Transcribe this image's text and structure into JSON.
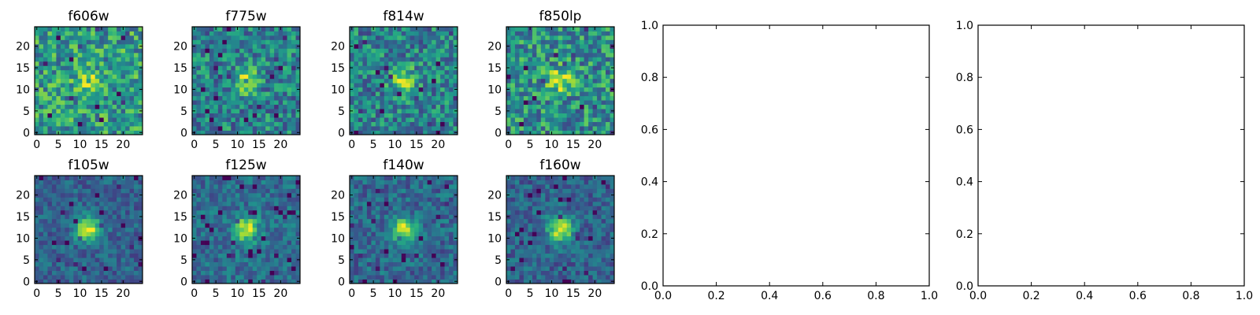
{
  "chart_data": [
    {
      "type": "heatmap",
      "title": "f606w",
      "size": 25,
      "seed": 11,
      "peak": 0.25,
      "noise": 0.55,
      "base": 0.55,
      "xticks": [
        "0",
        "5",
        "10",
        "15",
        "20"
      ],
      "yticks": [
        "0",
        "5",
        "10",
        "15",
        "20"
      ],
      "xlim": [
        0,
        24
      ],
      "ylim": [
        0,
        24
      ],
      "colormap": "viridis",
      "grid": false
    },
    {
      "type": "heatmap",
      "title": "f775w",
      "size": 25,
      "seed": 23,
      "peak": 0.4,
      "noise": 0.5,
      "base": 0.45,
      "xticks": [
        "0",
        "5",
        "10",
        "15",
        "20"
      ],
      "yticks": [
        "0",
        "5",
        "10",
        "15",
        "20"
      ],
      "xlim": [
        0,
        24
      ],
      "ylim": [
        0,
        24
      ],
      "colormap": "viridis",
      "grid": false
    },
    {
      "type": "heatmap",
      "title": "f814w",
      "size": 25,
      "seed": 37,
      "peak": 0.45,
      "noise": 0.5,
      "base": 0.45,
      "xticks": [
        "0",
        "5",
        "10",
        "15",
        "20"
      ],
      "yticks": [
        "0",
        "5",
        "10",
        "15",
        "20"
      ],
      "xlim": [
        0,
        24
      ],
      "ylim": [
        0,
        24
      ],
      "colormap": "viridis",
      "grid": false
    },
    {
      "type": "heatmap",
      "title": "f850lp",
      "size": 25,
      "seed": 41,
      "peak": 0.4,
      "noise": 0.55,
      "base": 0.5,
      "xticks": [
        "0",
        "5",
        "10",
        "15",
        "20"
      ],
      "yticks": [
        "0",
        "5",
        "10",
        "15",
        "20"
      ],
      "xlim": [
        0,
        24
      ],
      "ylim": [
        0,
        24
      ],
      "colormap": "viridis",
      "grid": false
    },
    {
      "type": "heatmap",
      "title": "f105w",
      "size": 25,
      "seed": 53,
      "peak": 0.65,
      "noise": 0.28,
      "base": 0.32,
      "xticks": [
        "0",
        "5",
        "10",
        "15",
        "20"
      ],
      "yticks": [
        "0",
        "5",
        "10",
        "15",
        "20"
      ],
      "xlim": [
        0,
        24
      ],
      "ylim": [
        0,
        24
      ],
      "colormap": "viridis",
      "grid": false
    },
    {
      "type": "heatmap",
      "title": "f125w",
      "size": 25,
      "seed": 67,
      "peak": 0.6,
      "noise": 0.3,
      "base": 0.36,
      "xticks": [
        "0",
        "5",
        "10",
        "15",
        "20"
      ],
      "yticks": [
        "0",
        "5",
        "10",
        "15",
        "20"
      ],
      "xlim": [
        0,
        24
      ],
      "ylim": [
        0,
        24
      ],
      "colormap": "viridis",
      "grid": false
    },
    {
      "type": "heatmap",
      "title": "f140w",
      "size": 25,
      "seed": 79,
      "peak": 0.6,
      "noise": 0.32,
      "base": 0.34,
      "xticks": [
        "0",
        "5",
        "10",
        "15",
        "20"
      ],
      "yticks": [
        "0",
        "5",
        "10",
        "15",
        "20"
      ],
      "xlim": [
        0,
        24
      ],
      "ylim": [
        0,
        24
      ],
      "colormap": "viridis",
      "grid": false
    },
    {
      "type": "heatmap",
      "title": "f160w",
      "size": 25,
      "seed": 97,
      "peak": 0.65,
      "noise": 0.3,
      "base": 0.32,
      "xticks": [
        "0",
        "5",
        "10",
        "15",
        "20"
      ],
      "yticks": [
        "0",
        "5",
        "10",
        "15",
        "20"
      ],
      "xlim": [
        0,
        24
      ],
      "ylim": [
        0,
        24
      ],
      "colormap": "viridis",
      "grid": false
    },
    {
      "type": "scatter",
      "title": "",
      "series": [],
      "xticks": [
        "0.0",
        "0.2",
        "0.4",
        "0.6",
        "0.8",
        "1.0"
      ],
      "yticks": [
        "0.0",
        "0.2",
        "0.4",
        "0.6",
        "0.8",
        "1.0"
      ],
      "xlim": [
        0,
        1
      ],
      "ylim": [
        0,
        1
      ],
      "grid": false
    },
    {
      "type": "scatter",
      "title": "",
      "series": [],
      "xticks": [
        "0.0",
        "0.2",
        "0.4",
        "0.6",
        "0.8",
        "1.0"
      ],
      "yticks": [
        "0.0",
        "0.2",
        "0.4",
        "0.6",
        "0.8",
        "1.0"
      ],
      "xlim": [
        0,
        1
      ],
      "ylim": [
        0,
        1
      ],
      "grid": false
    }
  ]
}
